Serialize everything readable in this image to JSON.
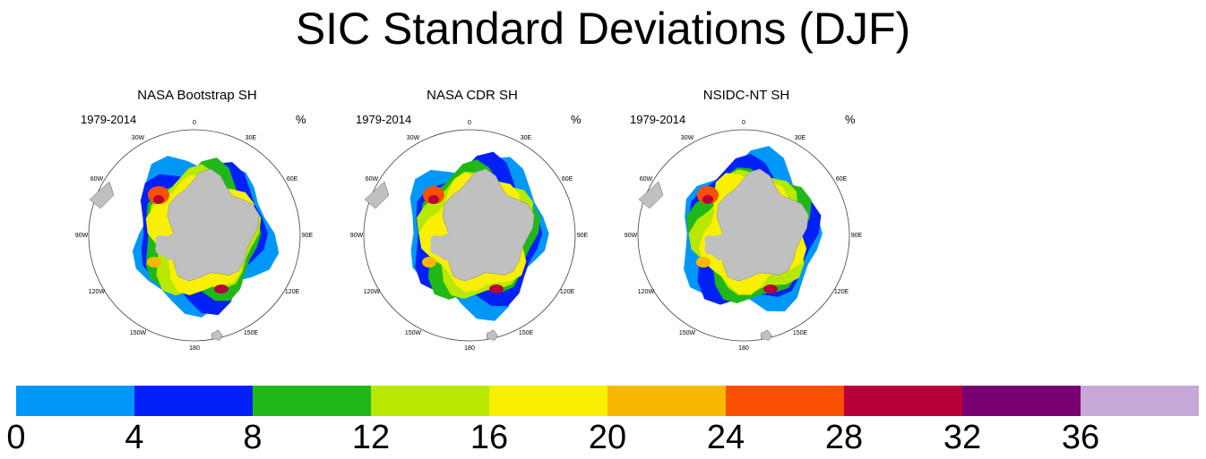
{
  "title": "SIC Standard Deviations (DJF)",
  "panels": [
    {
      "title": "NASA Bootstrap SH",
      "period": "1979-2014",
      "unit": "%"
    },
    {
      "title": "NASA CDR SH",
      "period": "1979-2014",
      "unit": "%"
    },
    {
      "title": "NSIDC-NT SH",
      "period": "1979-2014",
      "unit": "%"
    }
  ],
  "longitude_labels": [
    "0",
    "30E",
    "60E",
    "90E",
    "120E",
    "150E",
    "180",
    "150W",
    "120W",
    "90W",
    "60W",
    "30W"
  ],
  "colorbar": {
    "ticks": [
      "0",
      "4",
      "8",
      "12",
      "16",
      "20",
      "24",
      "28",
      "32",
      "36"
    ],
    "colors": [
      "#0098f8",
      "#0020f8",
      "#20b818",
      "#b8e800",
      "#f8f000",
      "#f8b800",
      "#f85000",
      "#b80038",
      "#780070",
      "#c8a8d8"
    ]
  },
  "colors": {
    "land": "#c0c0c0",
    "background": "#ffffff"
  }
}
